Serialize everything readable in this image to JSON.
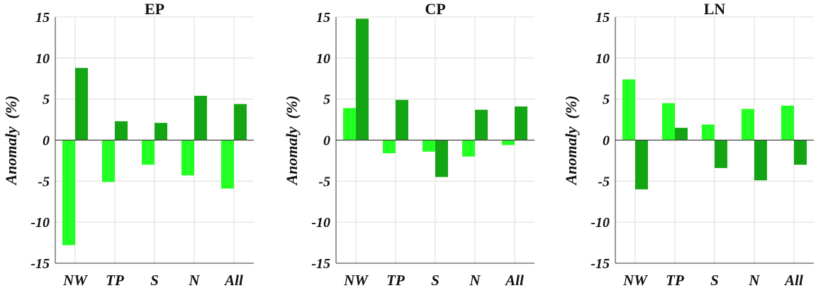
{
  "colors": {
    "series_light": "#22ff22",
    "series_dark": "#14a514",
    "grid": "#dcdcdc",
    "axis": "#333333",
    "zero_line": "#444444",
    "text": "#111111"
  },
  "chart_data": [
    {
      "type": "bar",
      "title": "EP",
      "ylabel": "Anomaly  (%)",
      "ylim": [
        -15,
        15
      ],
      "yticks": [
        -15,
        -10,
        -5,
        0,
        5,
        10,
        15
      ],
      "grid": true,
      "categories": [
        "NW",
        "TP",
        "S",
        "N",
        "All"
      ],
      "series": [
        {
          "values": [
            -12.8,
            -5.1,
            -3.0,
            -4.3,
            -5.9
          ]
        },
        {
          "values": [
            8.8,
            2.3,
            2.1,
            5.4,
            4.4
          ]
        }
      ]
    },
    {
      "type": "bar",
      "title": "CP",
      "ylabel": "Anomaly  (%)",
      "ylim": [
        -15,
        15
      ],
      "yticks": [
        -15,
        -10,
        -5,
        0,
        5,
        10,
        15
      ],
      "grid": true,
      "categories": [
        "NW",
        "TP",
        "S",
        "N",
        "All"
      ],
      "series": [
        {
          "values": [
            3.9,
            -1.6,
            -1.4,
            -2.0,
            -0.6
          ]
        },
        {
          "values": [
            14.8,
            4.9,
            -4.5,
            3.7,
            4.1
          ]
        }
      ]
    },
    {
      "type": "bar",
      "title": "LN",
      "ylabel": "Anomaly  (%)",
      "ylim": [
        -15,
        15
      ],
      "yticks": [
        -15,
        -10,
        -5,
        0,
        5,
        10,
        15
      ],
      "grid": true,
      "categories": [
        "NW",
        "TP",
        "S",
        "N",
        "All"
      ],
      "series": [
        {
          "values": [
            7.4,
            4.5,
            1.9,
            3.8,
            4.2
          ]
        },
        {
          "values": [
            -6.0,
            1.5,
            -3.4,
            -4.9,
            -3.0
          ]
        }
      ]
    }
  ]
}
